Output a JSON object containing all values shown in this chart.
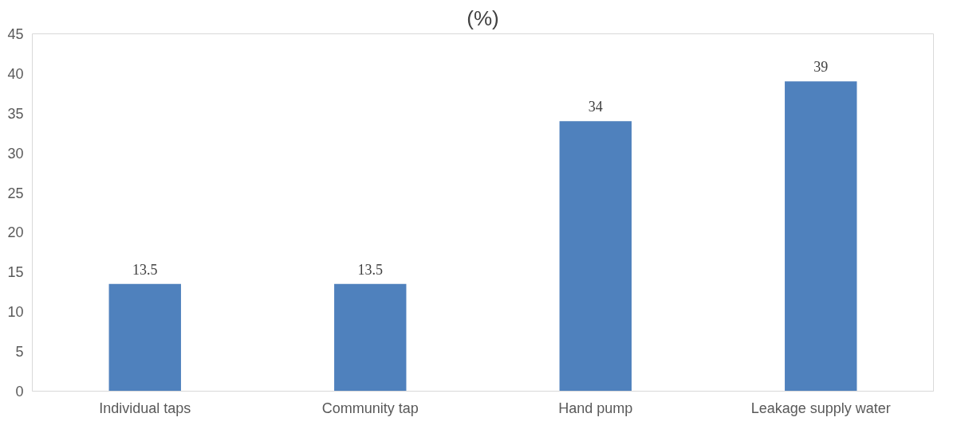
{
  "chart_data": {
    "type": "bar",
    "title": "(%)",
    "categories": [
      "Individual taps",
      "Community tap",
      "Hand pump",
      "Leakage supply water"
    ],
    "values": [
      13.5,
      13.5,
      34,
      39
    ],
    "color": "#4f81bd",
    "ylim": [
      0,
      45
    ],
    "yticks": [
      0,
      5,
      10,
      15,
      20,
      25,
      30,
      35,
      40,
      45
    ],
    "data_labels": true
  }
}
